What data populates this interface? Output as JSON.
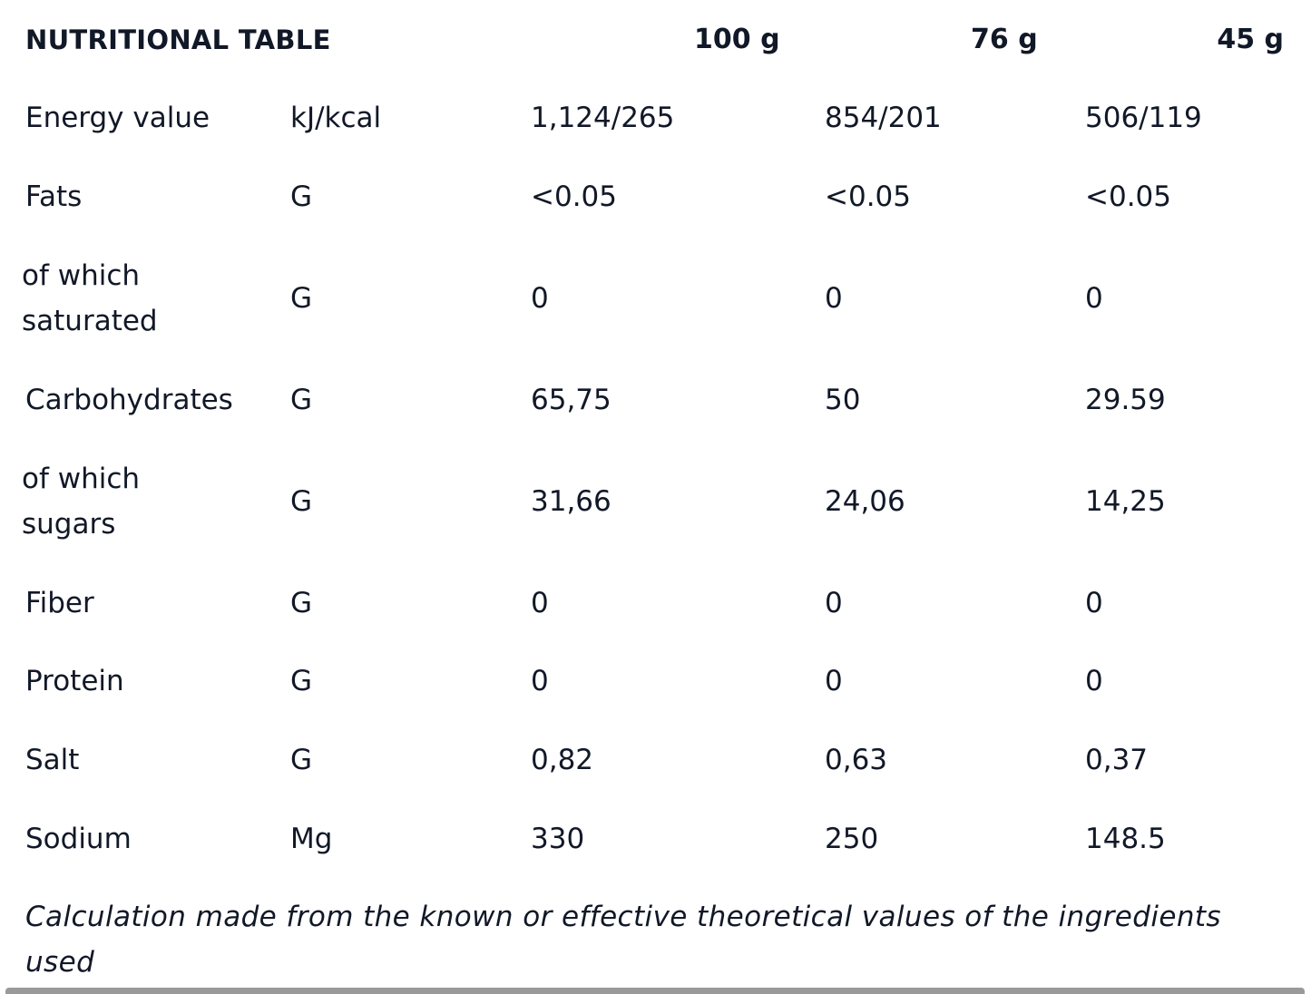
{
  "table": {
    "title": "NUTRITIONAL TABLE",
    "columns": [
      "100 g",
      "76 g",
      "45 g"
    ],
    "rows": [
      {
        "label": "Energy value",
        "unit": "kJ/kcal",
        "values": [
          "1,124/265",
          "854/201",
          "506/119"
        ]
      },
      {
        "label": "Fats",
        "unit": "G",
        "values": [
          "<0.05",
          "<0.05",
          "<0.05"
        ]
      },
      {
        "label_line1": "of which",
        "label_line2": "saturated",
        "unit": "G",
        "values": [
          "0",
          "0",
          "0"
        ]
      },
      {
        "label": "Carbohydrates",
        "unit": "G",
        "values": [
          "65,75",
          "50",
          "29.59"
        ]
      },
      {
        "label_line1": "of which",
        "label_line2": "sugars",
        "unit": "G",
        "values": [
          "31,66",
          "24,06",
          "14,25"
        ]
      },
      {
        "label": "Fiber",
        "unit": "G",
        "values": [
          "0",
          "0",
          "0"
        ]
      },
      {
        "label": "Protein",
        "unit": "G",
        "values": [
          "0",
          "0",
          "0"
        ]
      },
      {
        "label": "Salt",
        "unit": "G",
        "values": [
          "0,82",
          "0,63",
          "0,37"
        ]
      },
      {
        "label": "Sodium",
        "unit": "Mg",
        "values": [
          "330",
          "250",
          "148.5"
        ]
      }
    ],
    "footnote": "Calculation made from the known or effective theoretical values of the ingredients used"
  },
  "colors": {
    "text": "#111827",
    "background": "#ffffff",
    "scrollbar": "#9a9a9a"
  }
}
